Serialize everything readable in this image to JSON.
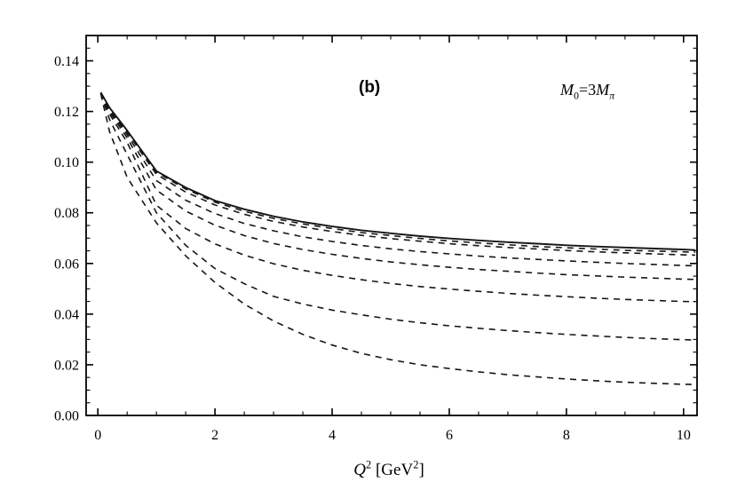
{
  "window": {
    "background": "#ffffff"
  },
  "figure": {
    "panel_label": "(b)",
    "mass_label": {
      "m1": "M",
      "sub1": "0",
      "mid": "=3",
      "m2": "M",
      "sub2": "π"
    },
    "xaxis_title": {
      "variable": "Q",
      "variable_sup": "2",
      "space": " ",
      "open": "[",
      "unit": "GeV",
      "unit_sup": "2",
      "close": "]"
    }
  },
  "style": {
    "line_color": "#161616",
    "frame_color": "#000000",
    "label_color": "#000000",
    "background": "#ffffff"
  },
  "chart_data": {
    "type": "line",
    "title": "",
    "xlabel": "Q^2 [GeV^2]",
    "ylabel": "",
    "annotations": [
      "(b)",
      "M0 = 3 Mπ"
    ],
    "grid": false,
    "legend": false,
    "xlim": [
      -0.2,
      10.23
    ],
    "ylim": [
      0,
      0.15
    ],
    "x_major_ticks": [
      0,
      2,
      4,
      6,
      8,
      10
    ],
    "x_tick_labels": [
      "0",
      "2",
      "4",
      "6",
      "8",
      "10"
    ],
    "x_minor_tick_step": 0.5,
    "y_major_ticks": [
      0.0,
      0.02,
      0.04,
      0.06,
      0.08,
      0.1,
      0.12,
      0.14
    ],
    "y_tick_labels": [
      "0.00",
      "0.02",
      "0.04",
      "0.06",
      "0.08",
      "0.10",
      "0.12",
      "0.14"
    ],
    "y_minor_tick_step": 0.005,
    "x": [
      0.05,
      0.2,
      0.5,
      1,
      1.5,
      2,
      2.5,
      3,
      3.5,
      4,
      4.5,
      5,
      5.5,
      6,
      6.5,
      7,
      7.5,
      8,
      8.5,
      9,
      9.5,
      10,
      10.2
    ],
    "series": [
      {
        "name": "full-result",
        "line_style": "solid",
        "values": [
          0.1275,
          0.1215,
          0.1125,
          0.0965,
          0.09,
          0.0848,
          0.0814,
          0.0786,
          0.0764,
          0.0746,
          0.0731,
          0.0719,
          0.0708,
          0.0699,
          0.0691,
          0.0684,
          0.0678,
          0.0672,
          0.0667,
          0.0663,
          0.0659,
          0.0655,
          0.0653
        ]
      },
      {
        "name": "dashed-1",
        "line_style": "dashed",
        "values": [
          0.1275,
          0.1213,
          0.1121,
          0.096,
          0.0894,
          0.0842,
          0.0806,
          0.0778,
          0.0756,
          0.0738,
          0.0722,
          0.071,
          0.0699,
          0.0689,
          0.0681,
          0.0674,
          0.0667,
          0.0662,
          0.0657,
          0.0652,
          0.0649,
          0.0646,
          0.0644
        ]
      },
      {
        "name": "dashed-2",
        "line_style": "dashed",
        "values": [
          0.1275,
          0.1211,
          0.1117,
          0.0952,
          0.0882,
          0.0831,
          0.0794,
          0.0766,
          0.0744,
          0.0726,
          0.0711,
          0.0698,
          0.0688,
          0.0678,
          0.067,
          0.0663,
          0.0657,
          0.0651,
          0.0646,
          0.0642,
          0.0638,
          0.0634,
          0.0633
        ]
      },
      {
        "name": "dashed-3",
        "line_style": "dashed",
        "values": [
          0.1274,
          0.1206,
          0.1108,
          0.0927,
          0.085,
          0.0797,
          0.0758,
          0.0729,
          0.0705,
          0.0687,
          0.0671,
          0.0658,
          0.0647,
          0.0638,
          0.0629,
          0.0622,
          0.0616,
          0.061,
          0.0605,
          0.06,
          0.0596,
          0.0592,
          0.0591
        ]
      },
      {
        "name": "dashed-4",
        "line_style": "dashed",
        "values": [
          0.1274,
          0.1199,
          0.1096,
          0.089,
          0.0807,
          0.0751,
          0.071,
          0.0679,
          0.0655,
          0.0636,
          0.062,
          0.0606,
          0.0595,
          0.0585,
          0.0576,
          0.0569,
          0.0562,
          0.0556,
          0.0551,
          0.0546,
          0.0542,
          0.0538,
          0.0537
        ]
      },
      {
        "name": "dashed-5",
        "line_style": "dashed",
        "values": [
          0.1273,
          0.119,
          0.1078,
          0.083,
          0.0738,
          0.0677,
          0.0633,
          0.0599,
          0.0573,
          0.0553,
          0.0536,
          0.0521,
          0.0509,
          0.0499,
          0.049,
          0.0482,
          0.0475,
          0.0469,
          0.0463,
          0.0458,
          0.0454,
          0.045,
          0.0449
        ]
      },
      {
        "name": "dashed-6",
        "line_style": "dashed",
        "values": [
          0.1272,
          0.1168,
          0.103,
          0.08,
          0.0672,
          0.058,
          0.052,
          0.047,
          0.044,
          0.0416,
          0.0397,
          0.038,
          0.0366,
          0.0354,
          0.0344,
          0.0335,
          0.0327,
          0.032,
          0.0314,
          0.0308,
          0.0303,
          0.0299,
          0.0298
        ]
      },
      {
        "name": "dashed-7",
        "line_style": "dashed",
        "values": [
          0.127,
          0.112,
          0.094,
          0.076,
          0.063,
          0.0525,
          0.044,
          0.0373,
          0.032,
          0.0278,
          0.0245,
          0.022,
          0.02,
          0.0185,
          0.0172,
          0.0161,
          0.0152,
          0.0144,
          0.0137,
          0.0131,
          0.0127,
          0.0123,
          0.0122
        ]
      }
    ]
  }
}
